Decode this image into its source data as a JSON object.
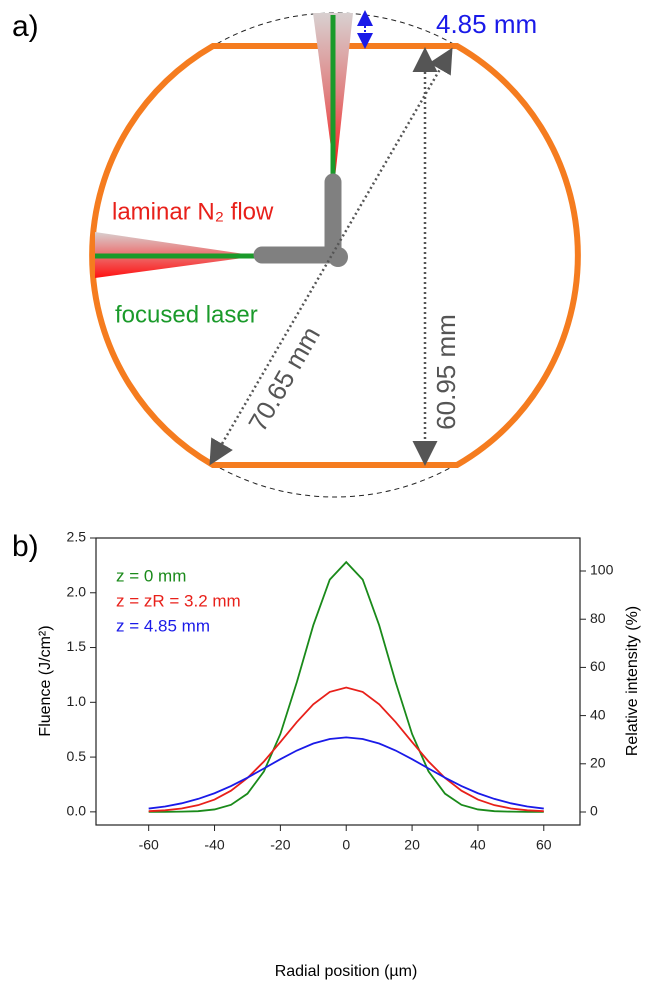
{
  "diagram": {
    "panel_label": "a)",
    "depth_label": "4.85 mm",
    "flow_label": "laminar N₂ flow",
    "laser_label": "focused laser",
    "diagonal_label": "70.65 mm",
    "height_label": "60.95 mm"
  },
  "chart_data": {
    "type": "line",
    "panel_label": "b)",
    "x_label": "Radial position (µm)",
    "y_label": "Fluence (J/cm²)",
    "y2_label": "Relative intensity (%)",
    "x": [
      -60,
      -55,
      -50,
      -45,
      -40,
      -35,
      -30,
      -25,
      -20,
      -15,
      -10,
      -5,
      0,
      5,
      10,
      15,
      20,
      25,
      30,
      35,
      40,
      45,
      50,
      55,
      60
    ],
    "series": [
      {
        "name": "z = 0 mm",
        "color": "#1a8a1a",
        "values": [
          0.0,
          0.0,
          0.002,
          0.006,
          0.022,
          0.064,
          0.166,
          0.369,
          0.711,
          1.184,
          1.704,
          2.12,
          2.28,
          2.12,
          1.704,
          1.184,
          0.711,
          0.369,
          0.166,
          0.064,
          0.022,
          0.006,
          0.002,
          0.0,
          0.0
        ]
      },
      {
        "name": "z = zR = 3.2 mm",
        "color": "#e8201a",
        "values": [
          0.006,
          0.014,
          0.031,
          0.061,
          0.112,
          0.193,
          0.309,
          0.46,
          0.637,
          0.82,
          0.982,
          1.095,
          1.135,
          1.095,
          0.982,
          0.82,
          0.637,
          0.46,
          0.309,
          0.193,
          0.112,
          0.061,
          0.031,
          0.014,
          0.006
        ]
      },
      {
        "name": "z = 4.85 mm",
        "color": "#1a1ae8",
        "values": [
          0.03,
          0.049,
          0.078,
          0.118,
          0.17,
          0.235,
          0.312,
          0.396,
          0.481,
          0.56,
          0.624,
          0.665,
          0.68,
          0.665,
          0.624,
          0.56,
          0.481,
          0.396,
          0.312,
          0.235,
          0.17,
          0.118,
          0.078,
          0.049,
          0.03
        ]
      }
    ],
    "xlim": [
      -76,
      71
    ],
    "xticks": [
      -60,
      -40,
      -20,
      0,
      20,
      40,
      60
    ],
    "ylim": [
      -0.12,
      2.5
    ],
    "yticks": [
      {
        "value": 0,
        "label": "0.0"
      },
      0.5,
      {
        "value": 1,
        "label": "1.0"
      },
      1.5,
      {
        "value": 2,
        "label": "2.0"
      },
      2.5
    ],
    "y2lim": [
      -5.4,
      113.7
    ],
    "y2ticks": [
      0,
      20,
      40,
      60,
      80,
      100
    ],
    "legend": "upper left"
  }
}
